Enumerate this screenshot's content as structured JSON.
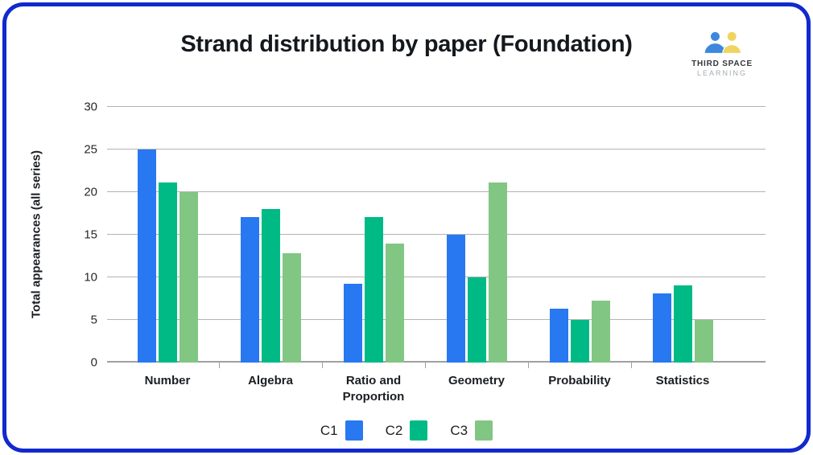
{
  "header": {
    "title": "Strand distribution by paper (Foundation)"
  },
  "logo": {
    "line1": "THIRD SPACE",
    "line2": "LEARNING",
    "mark_colors": {
      "blue": "#3e88dc",
      "green": "#2eae68",
      "yellow": "#efd45f"
    }
  },
  "colors": {
    "frame_border": "#1129CD",
    "gridline": "#b3b3b3",
    "axis": "#a0a0a0",
    "text_dark": "#1b1e22"
  },
  "chart_data": {
    "type": "bar",
    "title": "Strand distribution by paper (Foundation)",
    "xlabel": "",
    "ylabel": "Total appearances (all series)",
    "ylim": [
      0,
      30
    ],
    "yticks": [
      0,
      5,
      10,
      15,
      20,
      25,
      30
    ],
    "grid": true,
    "legend_position": "bottom",
    "categories": [
      "Number",
      "Algebra",
      "Ratio and Proportion",
      "Geometry",
      "Probability",
      "Statistics"
    ],
    "series": [
      {
        "name": "C1",
        "color": "#2878f2",
        "values": [
          25,
          17.1,
          9.2,
          15,
          6.3,
          8.1
        ]
      },
      {
        "name": "C2",
        "color": "#00ba86",
        "values": [
          21.1,
          18,
          17.1,
          10,
          5,
          9.1
        ]
      },
      {
        "name": "C3",
        "color": "#82c684",
        "values": [
          20,
          12.8,
          14,
          21.1,
          7.3,
          5
        ]
      }
    ]
  }
}
